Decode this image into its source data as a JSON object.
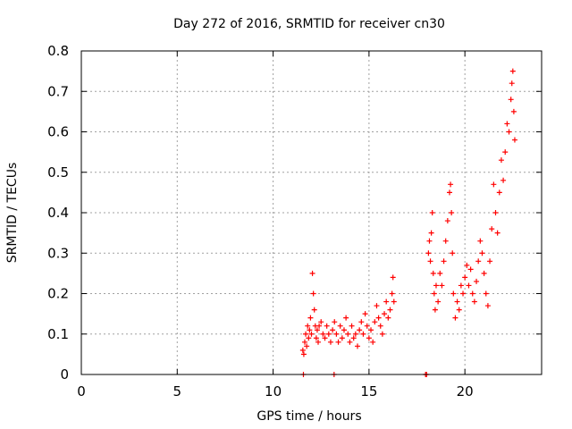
{
  "chart_data": {
    "type": "scatter",
    "title": "Day 272 of 2016, SRMTID for receiver cn30",
    "xlabel": "GPS time / hours",
    "ylabel": "SRMTID / TECUs",
    "xlim": [
      0,
      24
    ],
    "ylim": [
      0,
      0.8
    ],
    "x_ticks": [
      0,
      5,
      10,
      15,
      20
    ],
    "x_tick_labels": [
      "0",
      "5",
      "10",
      "15",
      "20"
    ],
    "y_ticks": [
      0,
      0.1,
      0.2,
      0.3,
      0.4,
      0.5,
      0.6,
      0.7,
      0.8
    ],
    "y_tick_labels": [
      "0",
      "0.1",
      "0.2",
      "0.3",
      "0.4",
      "0.5",
      "0.6",
      "0.7",
      "0.8"
    ],
    "grid": true,
    "marker": "plus",
    "color": "#ff0000",
    "series": [
      {
        "points": [
          [
            11.55,
            0.06
          ],
          [
            11.6,
            0.05
          ],
          [
            11.65,
            0.08
          ],
          [
            11.7,
            0.1
          ],
          [
            11.75,
            0.07
          ],
          [
            11.8,
            0.12
          ],
          [
            11.85,
            0.09
          ],
          [
            11.9,
            0.11
          ],
          [
            11.95,
            0.14
          ],
          [
            12.0,
            0.1
          ],
          [
            12.05,
            0.25
          ],
          [
            12.1,
            0.2
          ],
          [
            12.15,
            0.16
          ],
          [
            12.2,
            0.12
          ],
          [
            12.25,
            0.09
          ],
          [
            12.3,
            0.11
          ],
          [
            12.35,
            0.08
          ],
          [
            12.4,
            0.12
          ],
          [
            12.5,
            0.13
          ],
          [
            12.6,
            0.1
          ],
          [
            12.7,
            0.09
          ],
          [
            12.8,
            0.12
          ],
          [
            12.9,
            0.1
          ],
          [
            13.0,
            0.08
          ],
          [
            13.1,
            0.11
          ],
          [
            13.2,
            0.13
          ],
          [
            13.3,
            0.1
          ],
          [
            13.4,
            0.08
          ],
          [
            13.5,
            0.12
          ],
          [
            13.6,
            0.09
          ],
          [
            13.7,
            0.11
          ],
          [
            13.8,
            0.14
          ],
          [
            13.9,
            0.1
          ],
          [
            14.0,
            0.08
          ],
          [
            14.1,
            0.12
          ],
          [
            14.2,
            0.09
          ],
          [
            14.3,
            0.1
          ],
          [
            14.4,
            0.07
          ],
          [
            14.5,
            0.11
          ],
          [
            14.6,
            0.13
          ],
          [
            14.7,
            0.1
          ],
          [
            14.8,
            0.15
          ],
          [
            14.9,
            0.12
          ],
          [
            15.0,
            0.09
          ],
          [
            15.1,
            0.11
          ],
          [
            15.2,
            0.08
          ],
          [
            15.3,
            0.13
          ],
          [
            15.4,
            0.17
          ],
          [
            15.5,
            0.14
          ],
          [
            15.6,
            0.12
          ],
          [
            15.7,
            0.1
          ],
          [
            15.8,
            0.15
          ],
          [
            15.9,
            0.18
          ],
          [
            16.0,
            0.14
          ],
          [
            16.1,
            0.16
          ],
          [
            16.2,
            0.2
          ],
          [
            16.25,
            0.24
          ],
          [
            16.3,
            0.18
          ],
          [
            11.58,
            0.0
          ],
          [
            13.18,
            0.0
          ],
          [
            17.95,
            0.0
          ],
          [
            18.0,
            0.0
          ],
          [
            18.1,
            0.3
          ],
          [
            18.15,
            0.33
          ],
          [
            18.2,
            0.28
          ],
          [
            18.25,
            0.35
          ],
          [
            18.3,
            0.4
          ],
          [
            18.35,
            0.25
          ],
          [
            18.4,
            0.2
          ],
          [
            18.45,
            0.16
          ],
          [
            18.5,
            0.22
          ],
          [
            18.6,
            0.18
          ],
          [
            18.7,
            0.25
          ],
          [
            18.8,
            0.22
          ],
          [
            18.9,
            0.28
          ],
          [
            19.0,
            0.33
          ],
          [
            19.1,
            0.38
          ],
          [
            19.2,
            0.45
          ],
          [
            19.25,
            0.47
          ],
          [
            19.3,
            0.4
          ],
          [
            19.35,
            0.3
          ],
          [
            19.4,
            0.2
          ],
          [
            19.5,
            0.14
          ],
          [
            19.6,
            0.18
          ],
          [
            19.7,
            0.16
          ],
          [
            19.8,
            0.22
          ],
          [
            19.9,
            0.2
          ],
          [
            20.0,
            0.24
          ],
          [
            20.1,
            0.27
          ],
          [
            20.2,
            0.22
          ],
          [
            20.3,
            0.26
          ],
          [
            20.4,
            0.2
          ],
          [
            20.5,
            0.18
          ],
          [
            20.6,
            0.23
          ],
          [
            20.7,
            0.28
          ],
          [
            20.8,
            0.33
          ],
          [
            20.9,
            0.3
          ],
          [
            21.0,
            0.25
          ],
          [
            21.1,
            0.2
          ],
          [
            21.2,
            0.17
          ],
          [
            21.3,
            0.28
          ],
          [
            21.4,
            0.36
          ],
          [
            21.5,
            0.47
          ],
          [
            21.6,
            0.4
          ],
          [
            21.7,
            0.35
          ],
          [
            21.8,
            0.45
          ],
          [
            21.9,
            0.53
          ],
          [
            22.0,
            0.48
          ],
          [
            22.1,
            0.55
          ],
          [
            22.2,
            0.62
          ],
          [
            22.3,
            0.6
          ],
          [
            22.4,
            0.68
          ],
          [
            22.45,
            0.72
          ],
          [
            22.5,
            0.75
          ],
          [
            22.55,
            0.65
          ],
          [
            22.6,
            0.58
          ]
        ]
      }
    ]
  }
}
